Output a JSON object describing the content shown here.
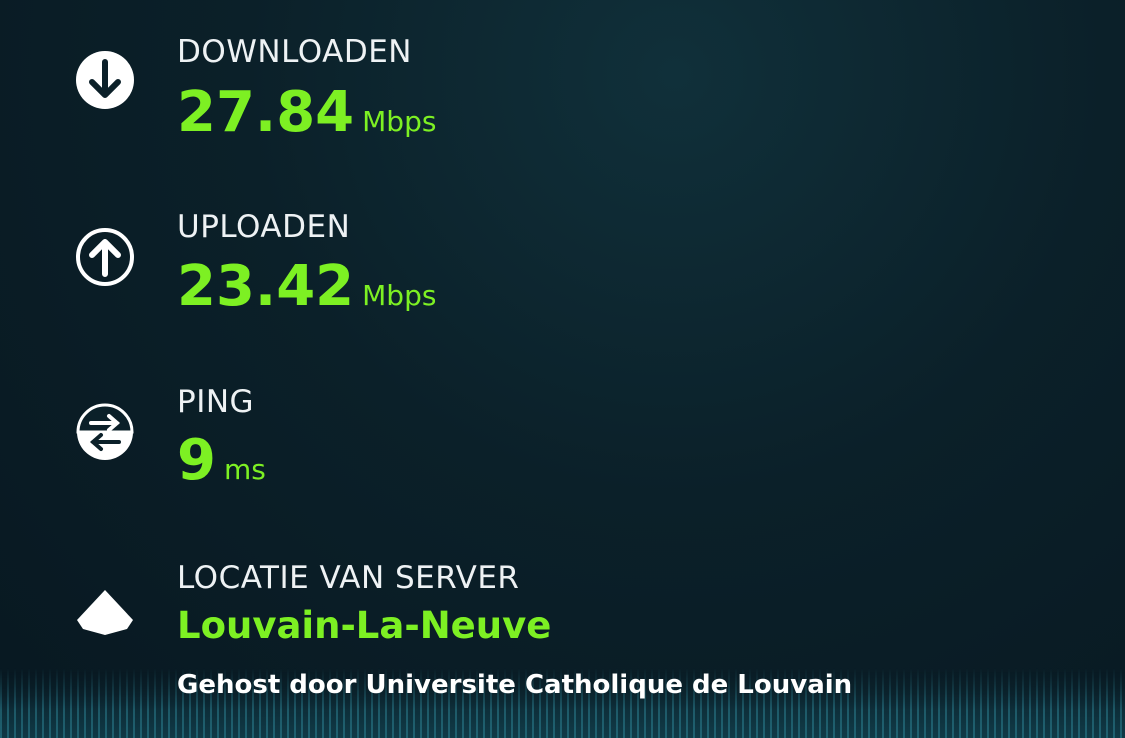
{
  "download": {
    "label": "DOWNLOADEN",
    "value": "27.84",
    "unit": "Mbps",
    "icon": "arrow-down-circle-icon"
  },
  "upload": {
    "label": "UPLOADEN",
    "value": "23.42",
    "unit": "Mbps",
    "icon": "arrow-up-circle-icon"
  },
  "ping": {
    "label": "PING",
    "value": "9",
    "unit": "ms",
    "icon": "ping-arrows-icon"
  },
  "server": {
    "label": "LOCATIE VAN SERVER",
    "location": "Louvain-La-Neuve",
    "host": "Gehost door Universite Catholique de Louvain",
    "icon": "server-location-icon"
  },
  "colors": {
    "accent": "#7df023",
    "background": "#0b2029",
    "text": "#eef2f4"
  }
}
